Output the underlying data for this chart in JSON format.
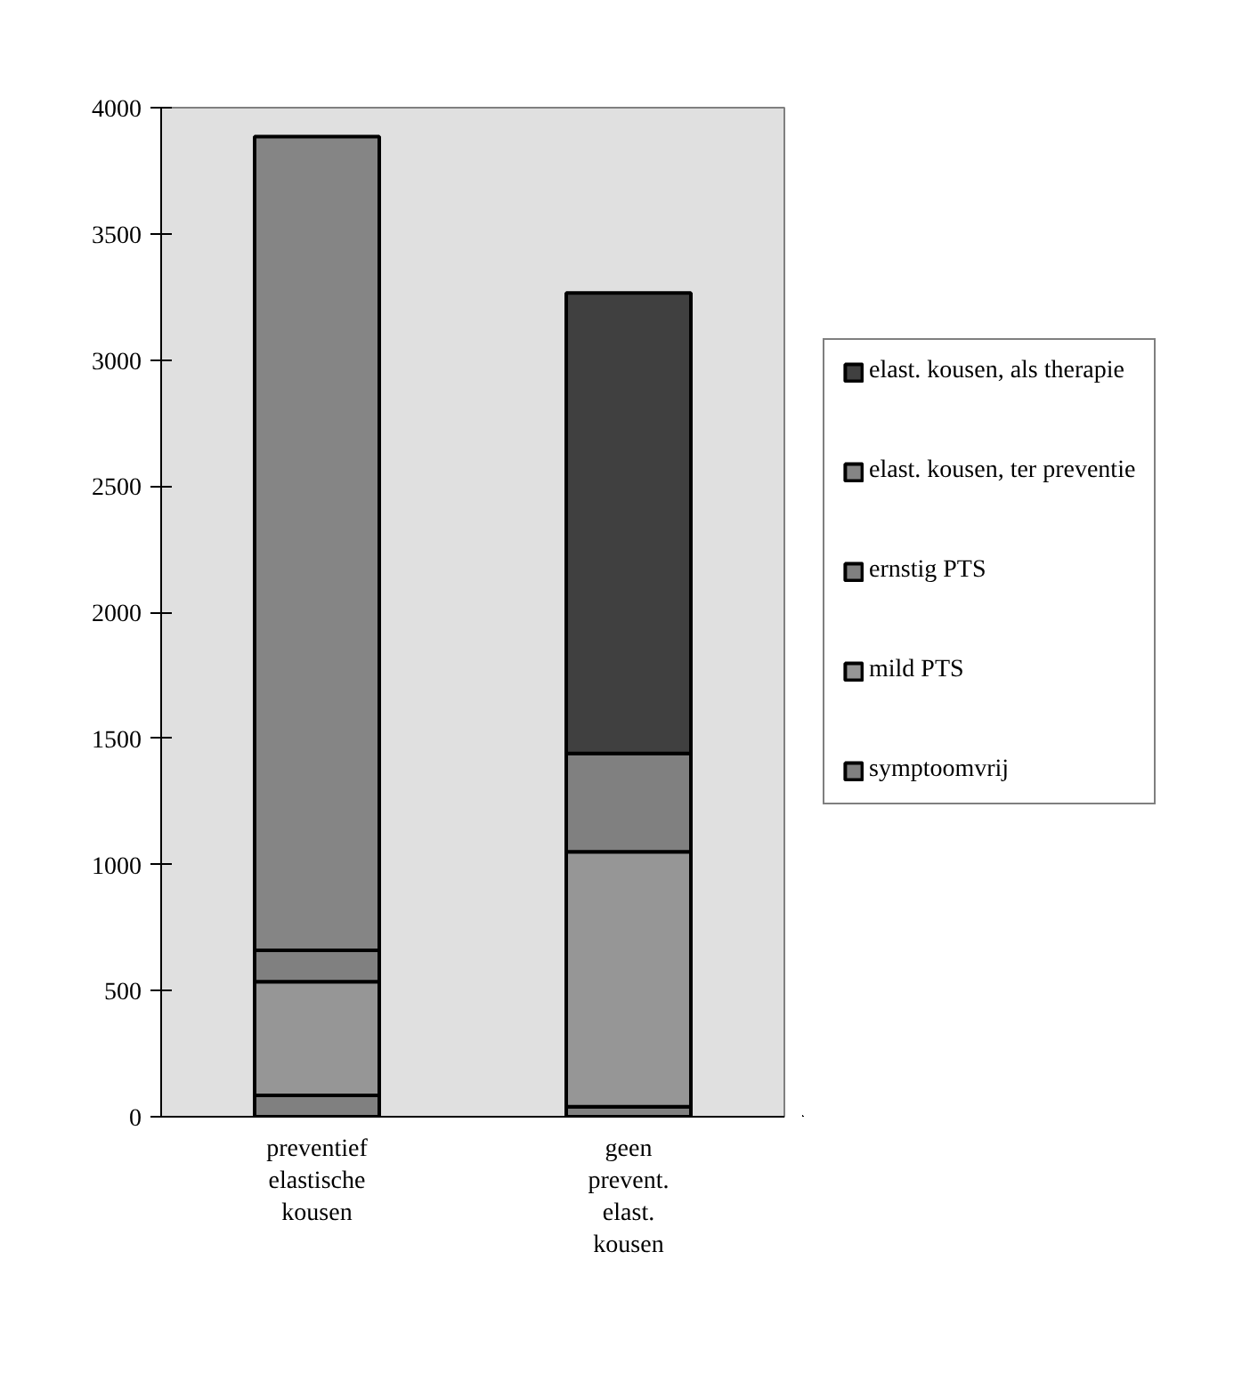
{
  "chart_data": {
    "type": "bar",
    "stacked": true,
    "categories": [
      "preventief\nelastische\nkousen",
      "geen\nprevent.\nelast.\nkousen"
    ],
    "series": [
      {
        "name": "symptoomvrij",
        "color": "#808080",
        "values": [
          85,
          40
        ]
      },
      {
        "name": "mild PTS",
        "color": "#969696",
        "values": [
          450,
          1010
        ]
      },
      {
        "name": "ernstig PTS",
        "color": "#808080",
        "values": [
          125,
          390
        ]
      },
      {
        "name": "elast. kousen, ter preventie",
        "color": "#858585",
        "values": [
          3225,
          null
        ]
      },
      {
        "name": "elast. kousen, als therapie",
        "color": "#404040",
        "values": [
          null,
          1825
        ]
      }
    ],
    "ylim": [
      0,
      4000
    ],
    "yticks": [
      0,
      500,
      1000,
      1500,
      2000,
      2500,
      3000,
      3500,
      4000
    ],
    "grid": false,
    "legend": "right"
  }
}
